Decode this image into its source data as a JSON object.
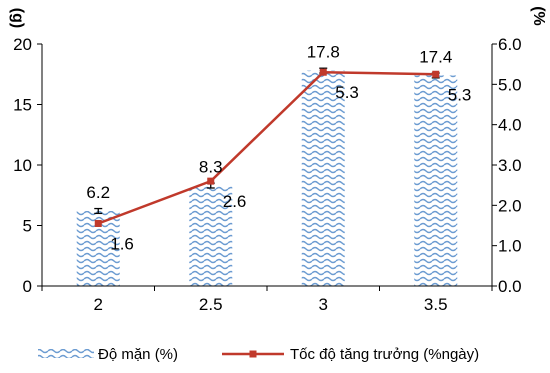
{
  "chart_data": {
    "type": "bar",
    "title": "",
    "categories": [
      "2",
      "2.5",
      "3",
      "3.5"
    ],
    "left_axis": {
      "unit_label": "(g)",
      "ylim": [
        0,
        20
      ],
      "ticks": [
        "0",
        "5",
        "10",
        "15",
        "20"
      ]
    },
    "right_axis": {
      "unit_label": "(%",
      "ylim": [
        0,
        6
      ],
      "ticks": [
        "0.0",
        "1.0",
        "2.0",
        "3.0",
        "4.0",
        "5.0",
        "6.0"
      ]
    },
    "series": [
      {
        "name": "Độ mặn (%)",
        "type": "bar",
        "axis": "left",
        "values": [
          6.2,
          8.3,
          17.8,
          17.4
        ],
        "labels": [
          "6.2",
          "8.3",
          "17.8",
          "17.4"
        ],
        "errors": [
          0.2,
          0.2,
          0.2,
          0.2
        ],
        "color": "#6b9bd1"
      },
      {
        "name": "Tốc độ tăng trưởng (%ngày)",
        "type": "line",
        "axis": "right",
        "values": [
          1.55,
          2.6,
          5.3,
          5.25
        ],
        "labels": [
          "1.6",
          "2.6",
          "5.3",
          "5.3"
        ],
        "color": "#c0392b"
      }
    ],
    "grid": false,
    "legend_position": "bottom"
  }
}
